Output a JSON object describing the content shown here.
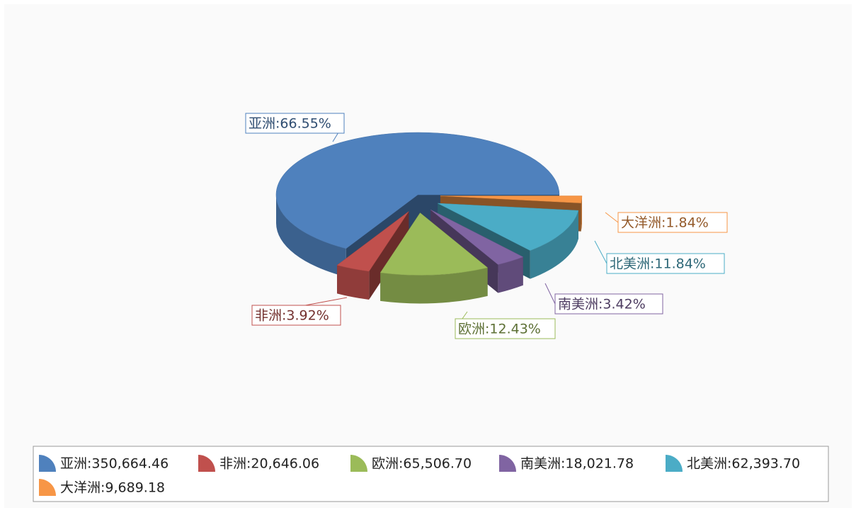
{
  "chart_data": {
    "type": "pie3d",
    "categories": [
      "亚洲",
      "非洲",
      "欧洲",
      "南美洲",
      "北美洲",
      "大洋洲"
    ],
    "values": [
      350664.46,
      20646.06,
      65506.7,
      18021.78,
      62393.7,
      9689.18
    ],
    "value_labels": [
      "亚洲:350,664.46",
      "非洲:20,646.06",
      "欧洲:65,506.70",
      "南美洲:18,021.78",
      "北美洲:62,393.70",
      "大洋洲:9,689.18"
    ],
    "percents": [
      66.55,
      3.92,
      12.43,
      3.42,
      11.84,
      1.84
    ],
    "percent_labels": [
      "亚洲:66.55%",
      "非洲:3.92%",
      "欧洲:12.43%",
      "南美洲:3.42%",
      "北美洲:11.84%",
      "大洋洲:1.84%"
    ],
    "colors": [
      "#4f81bd",
      "#c0504d",
      "#9bbb59",
      "#8064a2",
      "#4bacc6",
      "#f79646"
    ]
  }
}
